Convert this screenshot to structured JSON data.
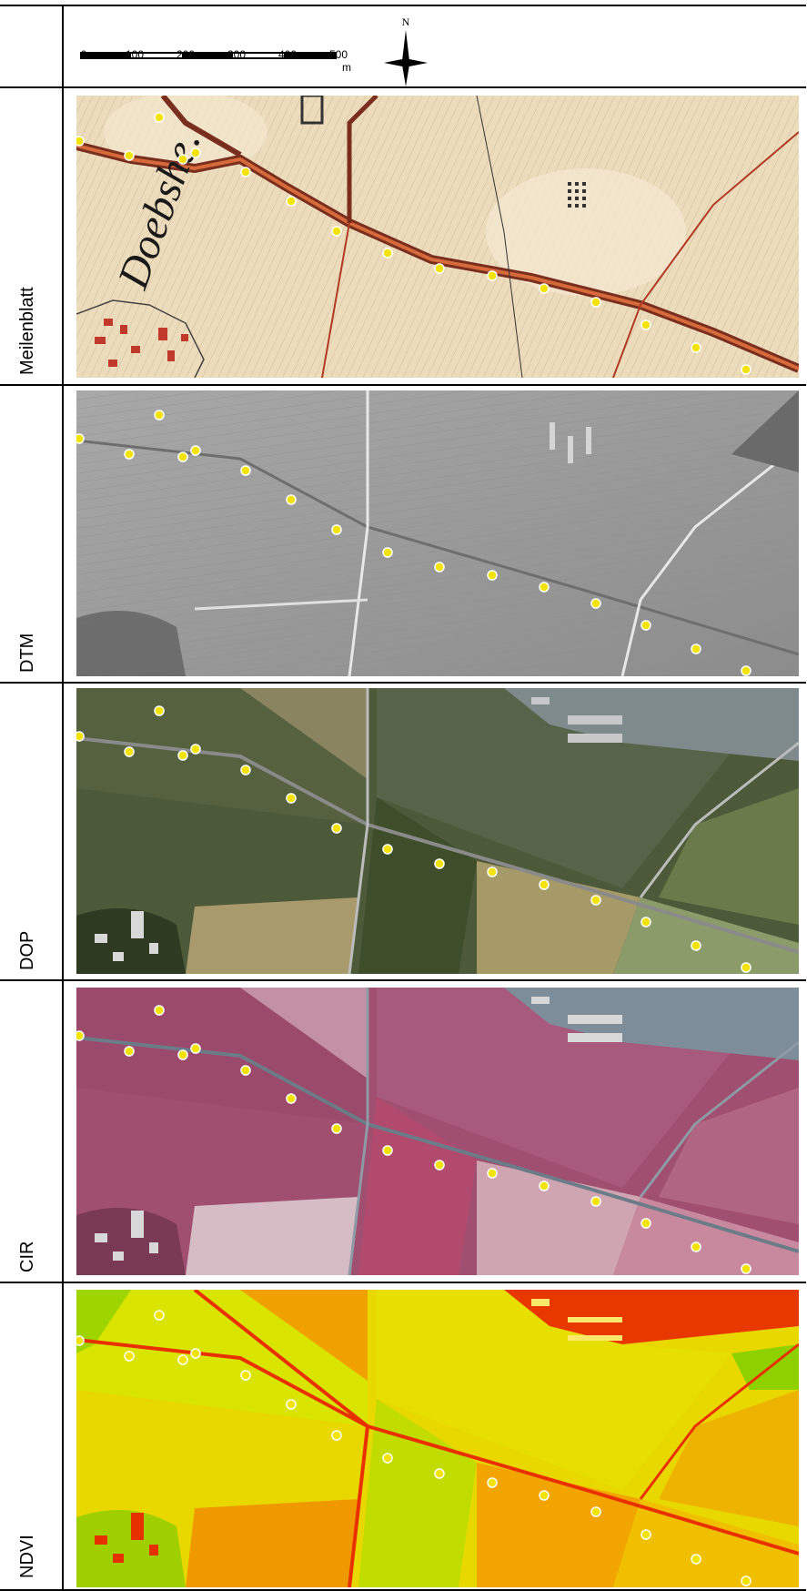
{
  "header": {
    "scale_ticks": [
      "0",
      "100",
      "200",
      "300",
      "400",
      "500"
    ],
    "scale_unit": "m",
    "north_letter": "N"
  },
  "rows": [
    {
      "label": "Meilenblatt",
      "map_text": "Doebshe."
    },
    {
      "label": "DTM"
    },
    {
      "label": "DOP"
    },
    {
      "label": "CIR"
    },
    {
      "label": "NDVI"
    }
  ],
  "colors": {
    "point_fill": "#f2e400",
    "point_stroke": "#ffffff",
    "meilenblatt_bg": "#eddcbc",
    "dtm_bg": "#9a9a9a",
    "dop_bg": "#4d5a3a",
    "cir_bg": "#a14f70",
    "ndvi_bg": "#e8d800"
  }
}
